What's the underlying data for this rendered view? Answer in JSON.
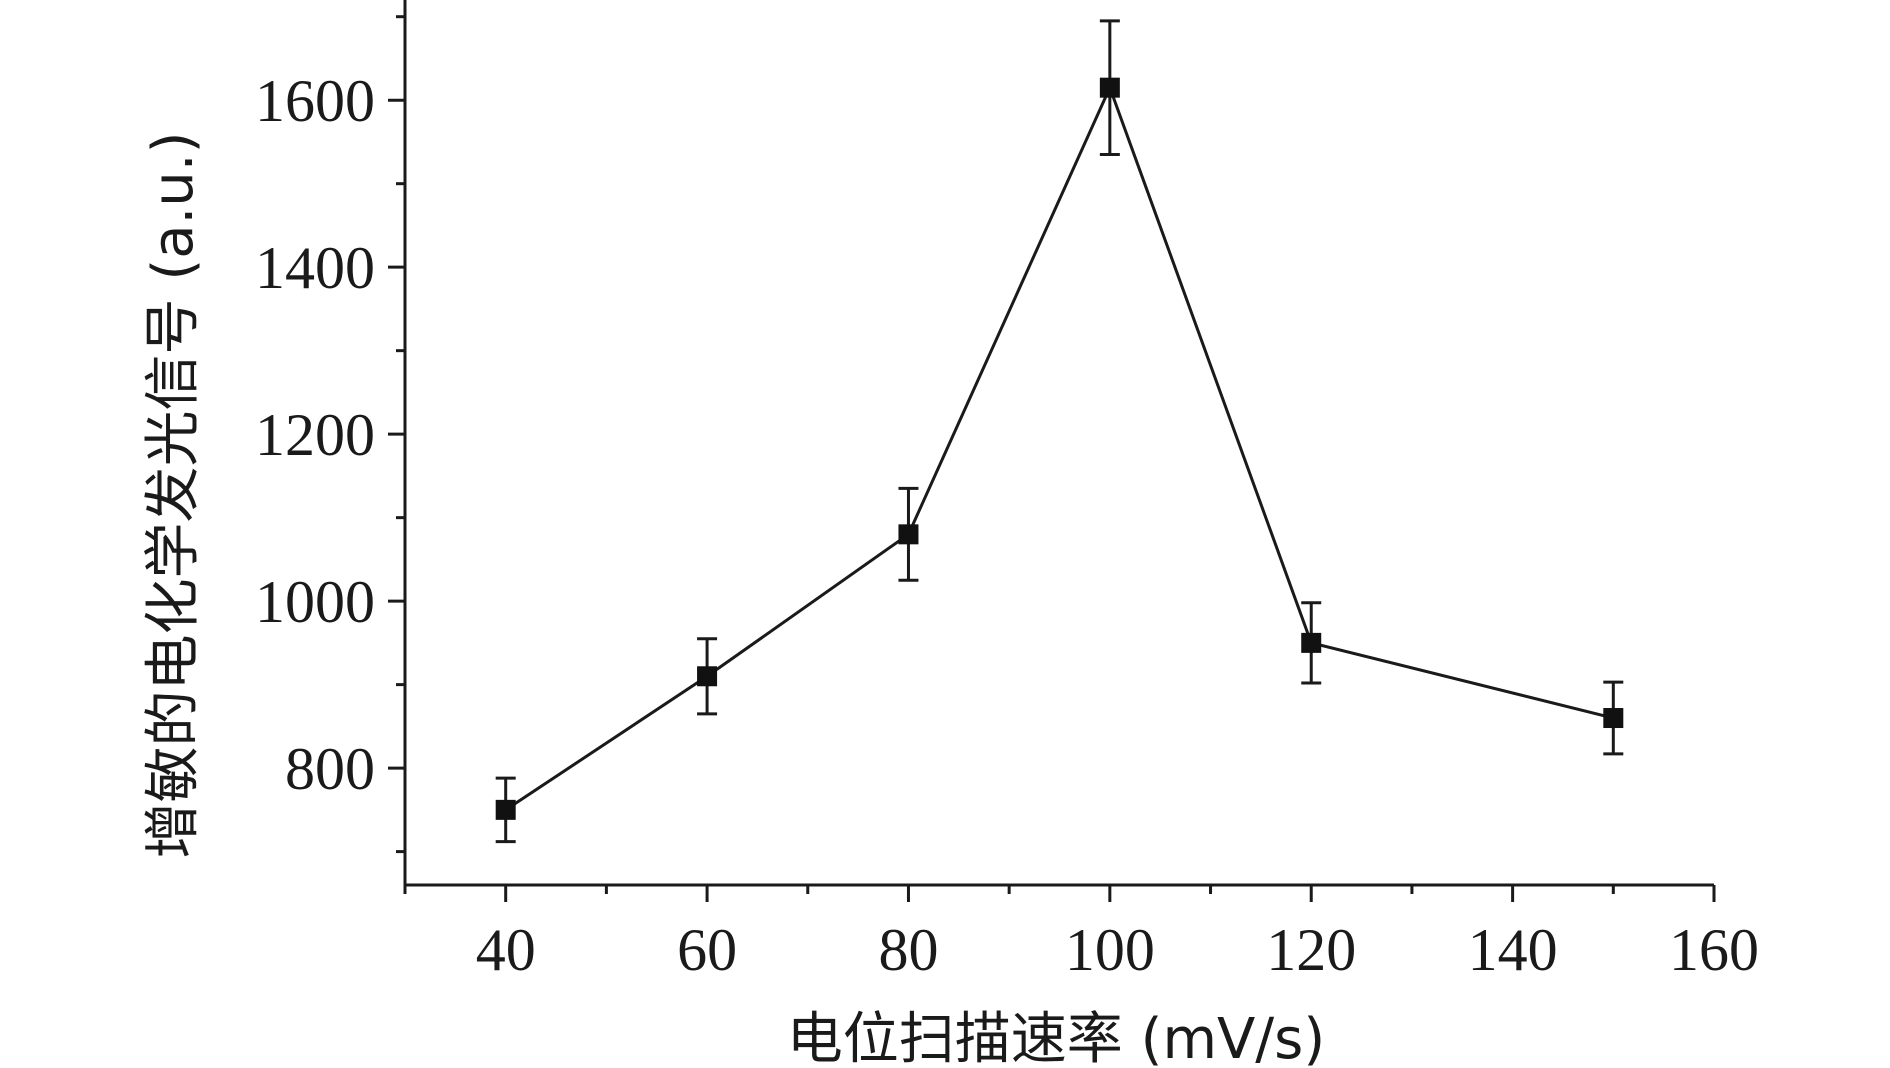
{
  "chart_data": {
    "type": "line",
    "xlabel": "电位扫描速率 (mV/s)",
    "ylabel": "增敏的电化学发光信号 (a.u.)",
    "xlim": [
      30,
      160
    ],
    "ylim": [
      660,
      1720
    ],
    "x_ticks": [
      40,
      60,
      80,
      100,
      120,
      140,
      160
    ],
    "y_ticks": [
      800,
      1000,
      1200,
      1400,
      1600
    ],
    "x_tick_labels": [
      "40",
      "60",
      "80",
      "100",
      "120",
      "140",
      "160"
    ],
    "y_tick_labels": [
      "800",
      "1000",
      "1200",
      "1400",
      "1600"
    ],
    "grid": false,
    "series": [
      {
        "x": [
          40,
          60,
          80,
          100,
          120,
          150
        ],
        "y": [
          750,
          910,
          1080,
          1615,
          950,
          860
        ],
        "error": [
          38,
          45,
          55,
          80,
          48,
          43
        ]
      }
    ],
    "colors": {
      "line": "#1a1a1a",
      "marker": "#111111"
    }
  }
}
